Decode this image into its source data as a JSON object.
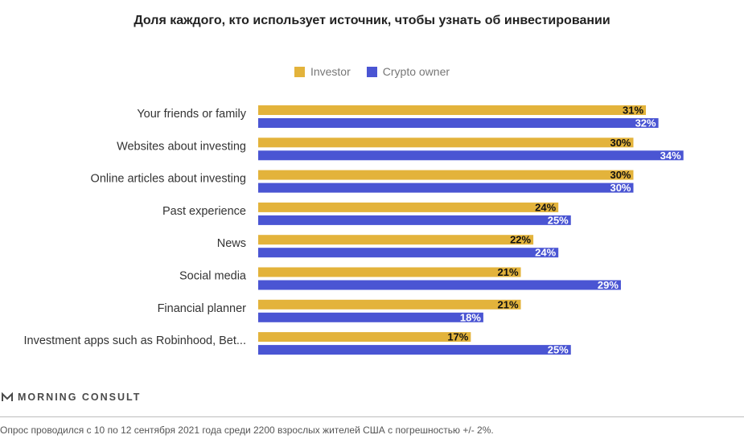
{
  "chart_data": {
    "type": "bar",
    "orientation": "horizontal",
    "title": "Доля каждого, кто использует источник, чтобы узнать об инвестировании",
    "categories": [
      "Your friends or family",
      "Websites about investing",
      "Online articles about investing",
      "Past experience",
      "News",
      "Social media",
      "Financial planner",
      "Investment apps such as Robinhood, Bet..."
    ],
    "series": [
      {
        "name": "Investor",
        "color": "#e3b33b",
        "values": [
          31,
          30,
          30,
          24,
          22,
          21,
          21,
          17
        ]
      },
      {
        "name": "Crypto owner",
        "color": "#4a55d3",
        "values": [
          32,
          34,
          30,
          25,
          24,
          29,
          18,
          25
        ]
      }
    ],
    "value_suffix": "%",
    "xlim": [
      0,
      34
    ],
    "legend_position": "top-center",
    "grid": false
  },
  "brand": {
    "name": "MORNING CONSULT"
  },
  "footnote": "Опрос проводился с 10 по 12 сентября 2021 года среди 2200 взрослых жителей США с погрешностью +/- 2%."
}
